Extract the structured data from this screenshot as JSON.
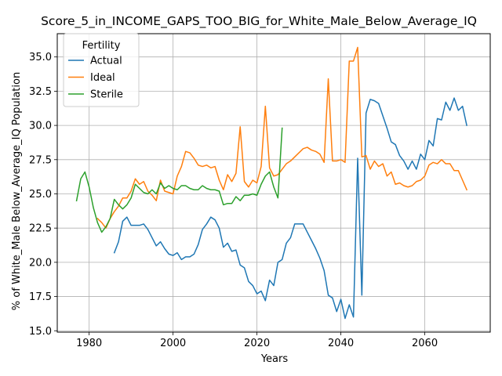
{
  "chart_data": {
    "type": "line",
    "title": "Score_5_in_INCOME_GAPS_TOO_BIG_for_White_Male_Below_Average_IQ",
    "xlabel": "Years",
    "ylabel": "% of White_Male Below_Average_IQ Population",
    "xlim": [
      1972.4,
      2075.6
    ],
    "ylim": [
      14.9,
      36.7
    ],
    "xticks": [
      1980,
      2000,
      2020,
      2040,
      2060
    ],
    "yticks": [
      15.0,
      17.5,
      20.0,
      22.5,
      25.0,
      27.5,
      30.0,
      32.5,
      35.0
    ],
    "grid": true,
    "legend": {
      "title": "Fertility",
      "placement": "top-left"
    },
    "series": [
      {
        "name": "Actual",
        "color": "#1f77b4",
        "x": [
          1986,
          1987,
          1988,
          1989,
          1990,
          1991,
          1992,
          1993,
          1994,
          1995,
          1996,
          1997,
          1998,
          1999,
          2000,
          2001,
          2002,
          2003,
          2004,
          2005,
          2006,
          2007,
          2008,
          2009,
          2010,
          2011,
          2012,
          2013,
          2014,
          2015,
          2016,
          2017,
          2018,
          2019,
          2020,
          2021,
          2022,
          2023,
          2024,
          2025,
          2026,
          2027,
          2028,
          2029,
          2030,
          2031,
          2032,
          2033,
          2034,
          2035,
          2036,
          2037,
          2038,
          2039,
          2040,
          2041,
          2042,
          2043,
          2044,
          2045,
          2046,
          2047,
          2048,
          2049,
          2050,
          2051,
          2052,
          2053,
          2054,
          2055,
          2056,
          2057,
          2058,
          2059,
          2060,
          2061,
          2062,
          2063,
          2064,
          2065,
          2066,
          2067,
          2068,
          2069,
          2070
        ],
        "values": [
          20.7,
          21.5,
          23.0,
          23.3,
          22.7,
          22.7,
          22.7,
          22.8,
          22.4,
          21.8,
          21.2,
          21.5,
          21.0,
          20.6,
          20.5,
          20.7,
          20.2,
          20.4,
          20.4,
          20.6,
          21.3,
          22.4,
          22.8,
          23.3,
          23.1,
          22.5,
          21.1,
          21.4,
          20.8,
          20.9,
          19.8,
          19.6,
          18.6,
          18.3,
          17.7,
          17.9,
          17.2,
          18.7,
          18.3,
          20.0,
          20.2,
          21.4,
          21.8,
          22.8,
          22.8,
          22.8,
          22.2,
          21.6,
          21.0,
          20.3,
          19.4,
          17.6,
          17.4,
          16.4,
          17.3,
          15.9,
          16.9,
          16.0,
          27.6,
          17.6,
          30.9,
          31.9,
          31.8,
          31.6,
          30.7,
          29.8,
          28.8,
          28.6,
          27.8,
          27.4,
          26.8,
          27.4,
          26.8,
          27.9,
          27.5,
          28.9,
          28.5,
          30.5,
          30.4,
          31.7,
          31.1,
          32.0,
          31.1,
          31.4,
          30.0
        ]
      },
      {
        "name": "Ideal",
        "color": "#ff7f0e",
        "x": [
          1982,
          1983,
          1984,
          1985,
          1986,
          1987,
          1988,
          1989,
          1990,
          1991,
          1992,
          1993,
          1994,
          1995,
          1996,
          1997,
          1998,
          1999,
          2000,
          2001,
          2002,
          2003,
          2004,
          2005,
          2006,
          2007,
          2008,
          2009,
          2010,
          2011,
          2012,
          2013,
          2014,
          2015,
          2016,
          2017,
          2018,
          2019,
          2020,
          2021,
          2022,
          2023,
          2024,
          2025,
          2026,
          2027,
          2028,
          2029,
          2030,
          2031,
          2032,
          2033,
          2034,
          2035,
          2036,
          2037,
          2038,
          2039,
          2040,
          2041,
          2042,
          2043,
          2044,
          2045,
          2046,
          2047,
          2048,
          2049,
          2050,
          2051,
          2052,
          2053,
          2054,
          2055,
          2056,
          2057,
          2058,
          2059,
          2060,
          2061,
          2062,
          2063,
          2064,
          2065,
          2066,
          2067,
          2068,
          2069,
          2070
        ],
        "values": [
          23.2,
          22.9,
          22.5,
          23.2,
          23.7,
          24.1,
          24.7,
          24.7,
          25.2,
          26.1,
          25.7,
          25.9,
          25.2,
          24.9,
          24.5,
          26.0,
          25.2,
          25.1,
          25.0,
          26.3,
          27.0,
          28.1,
          28.0,
          27.6,
          27.1,
          27.0,
          27.1,
          26.9,
          27.0,
          26.0,
          25.3,
          26.4,
          25.9,
          26.5,
          29.9,
          25.9,
          25.5,
          26.0,
          25.8,
          27.0,
          31.4,
          26.9,
          26.3,
          26.4,
          26.8,
          27.2,
          27.4,
          27.7,
          28.0,
          28.3,
          28.4,
          28.2,
          28.1,
          27.9,
          27.3,
          33.4,
          27.4,
          27.4,
          27.5,
          27.3,
          34.7,
          34.7,
          35.7,
          27.7,
          27.8,
          26.8,
          27.4,
          27.0,
          27.2,
          26.3,
          26.6,
          25.7,
          25.8,
          25.6,
          25.5,
          25.6,
          25.9,
          26.0,
          26.3,
          27.1,
          27.3,
          27.2,
          27.5,
          27.2,
          27.2,
          26.7,
          26.7,
          25.8,
          26.0
        ],
        "overrides": {
          "2070": 25.3,
          "2069": 26.0
        }
      },
      {
        "name": "Sterile",
        "color": "#2ca02c",
        "x": [
          1977,
          1978,
          1979,
          1980,
          1981,
          1982,
          1983,
          1984,
          1985,
          1986,
          1987,
          1988,
          1989,
          1990,
          1991,
          1992,
          1993,
          1994,
          1995,
          1996,
          1997,
          1998,
          1999,
          2000,
          2001,
          2002,
          2003,
          2004,
          2005,
          2006,
          2007,
          2008,
          2009,
          2010,
          2011,
          2012,
          2013,
          2014,
          2015,
          2016,
          2017,
          2018,
          2019,
          2020,
          2021,
          2022,
          2023,
          2024,
          2025,
          2026
        ],
        "values": [
          24.5,
          26.1,
          26.6,
          25.5,
          24.0,
          22.9,
          22.2,
          22.6,
          23.2,
          24.6,
          24.2,
          23.9,
          24.2,
          24.7,
          25.7,
          25.4,
          25.1,
          25.0,
          25.3,
          25.0,
          25.8,
          25.4,
          25.6,
          25.4,
          25.3,
          25.6,
          25.6,
          25.4,
          25.3,
          25.3,
          25.6,
          25.4,
          25.3,
          25.3,
          25.2,
          24.2,
          24.3,
          24.3,
          24.8,
          24.5,
          24.9,
          24.9,
          25.0,
          24.9,
          25.7,
          26.3,
          26.6,
          25.5,
          24.7,
          29.8
        ]
      }
    ]
  }
}
